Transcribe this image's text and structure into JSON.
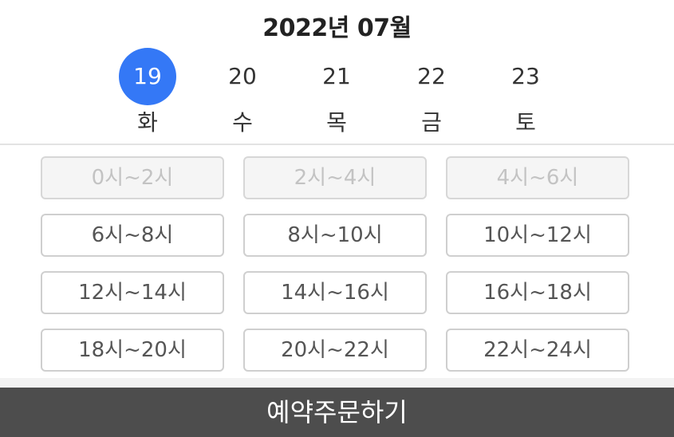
{
  "header": {
    "month_title": "2022년 07월"
  },
  "days": [
    {
      "num": "19",
      "weekday": "화",
      "selected": true
    },
    {
      "num": "20",
      "weekday": "수",
      "selected": false
    },
    {
      "num": "21",
      "weekday": "목",
      "selected": false
    },
    {
      "num": "22",
      "weekday": "금",
      "selected": false
    },
    {
      "num": "23",
      "weekday": "토",
      "selected": false
    }
  ],
  "colors": {
    "selected_day": "#3478f6",
    "order_bar": "#4d4d4d",
    "disabled_slot_bg": "#f5f5f5"
  },
  "slots": [
    {
      "label": "0시~2시",
      "disabled": true
    },
    {
      "label": "2시~4시",
      "disabled": true
    },
    {
      "label": "4시~6시",
      "disabled": true
    },
    {
      "label": "6시~8시",
      "disabled": false
    },
    {
      "label": "8시~10시",
      "disabled": false
    },
    {
      "label": "10시~12시",
      "disabled": false
    },
    {
      "label": "12시~14시",
      "disabled": false
    },
    {
      "label": "14시~16시",
      "disabled": false
    },
    {
      "label": "16시~18시",
      "disabled": false
    },
    {
      "label": "18시~20시",
      "disabled": false
    },
    {
      "label": "20시~22시",
      "disabled": false
    },
    {
      "label": "22시~24시",
      "disabled": false
    }
  ],
  "footer": {
    "order_label": "예약주문하기"
  }
}
